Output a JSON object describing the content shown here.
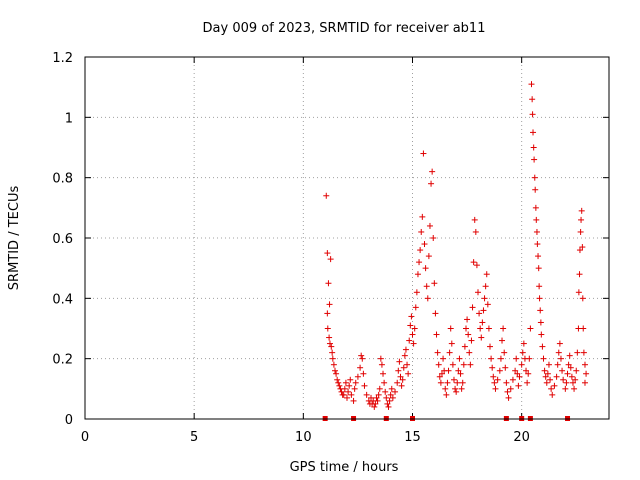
{
  "chart_data": {
    "type": "scatter",
    "title": "Day 009 of 2023, SRMTID for receiver ab11",
    "xlabel": "GPS time / hours",
    "ylabel": "SRMTID / TECUs",
    "xlim": [
      0,
      24
    ],
    "ylim": [
      0,
      1.2
    ],
    "x_ticks": [
      0,
      5,
      10,
      15,
      20
    ],
    "x_tick_labels": [
      "0",
      "5",
      "10",
      "15",
      "20"
    ],
    "y_ticks": [
      0,
      0.2,
      0.4,
      0.6,
      0.8,
      1.0,
      1.2
    ],
    "y_tick_labels": [
      "0",
      "0.2",
      "0.4",
      "0.6",
      "0.8",
      "1",
      "1.2"
    ],
    "grid": true,
    "marker": "+",
    "color": "#e00000",
    "zero_markers_x": [
      11.0,
      12.3,
      13.8,
      15.0,
      19.3,
      20.0,
      20.4,
      22.1
    ],
    "series": [
      {
        "name": "SRMTID",
        "points": [
          [
            11.05,
            0.74
          ],
          [
            11.1,
            0.55
          ],
          [
            11.15,
            0.45
          ],
          [
            11.2,
            0.38
          ],
          [
            11.25,
            0.53
          ],
          [
            11.1,
            0.35
          ],
          [
            11.12,
            0.3
          ],
          [
            11.18,
            0.27
          ],
          [
            11.22,
            0.25
          ],
          [
            11.28,
            0.24
          ],
          [
            11.32,
            0.22
          ],
          [
            11.35,
            0.2
          ],
          [
            11.4,
            0.18
          ],
          [
            11.45,
            0.16
          ],
          [
            11.5,
            0.15
          ],
          [
            11.55,
            0.13
          ],
          [
            11.6,
            0.12
          ],
          [
            11.65,
            0.11
          ],
          [
            11.7,
            0.1
          ],
          [
            11.75,
            0.09
          ],
          [
            11.8,
            0.08
          ],
          [
            11.85,
            0.08
          ],
          [
            11.9,
            0.1
          ],
          [
            11.95,
            0.12
          ],
          [
            12.0,
            0.07
          ],
          [
            12.05,
            0.09
          ],
          [
            12.1,
            0.11
          ],
          [
            12.15,
            0.13
          ],
          [
            12.2,
            0.08
          ],
          [
            12.3,
            0.06
          ],
          [
            12.35,
            0.1
          ],
          [
            12.4,
            0.12
          ],
          [
            12.5,
            0.14
          ],
          [
            12.6,
            0.17
          ],
          [
            12.65,
            0.21
          ],
          [
            12.7,
            0.2
          ],
          [
            12.75,
            0.15
          ],
          [
            12.8,
            0.11
          ],
          [
            12.9,
            0.08
          ],
          [
            13.0,
            0.06
          ],
          [
            13.05,
            0.05
          ],
          [
            13.1,
            0.07
          ],
          [
            13.15,
            0.05
          ],
          [
            13.2,
            0.06
          ],
          [
            13.25,
            0.04
          ],
          [
            13.3,
            0.05
          ],
          [
            13.35,
            0.07
          ],
          [
            13.4,
            0.06
          ],
          [
            13.45,
            0.08
          ],
          [
            13.5,
            0.1
          ],
          [
            13.55,
            0.2
          ],
          [
            13.6,
            0.18
          ],
          [
            13.65,
            0.15
          ],
          [
            13.7,
            0.12
          ],
          [
            13.75,
            0.09
          ],
          [
            13.8,
            0.07
          ],
          [
            13.85,
            0.05
          ],
          [
            13.9,
            0.04
          ],
          [
            13.95,
            0.06
          ],
          [
            14.0,
            0.08
          ],
          [
            14.05,
            0.1
          ],
          [
            14.1,
            0.07
          ],
          [
            14.2,
            0.09
          ],
          [
            14.3,
            0.12
          ],
          [
            14.35,
            0.16
          ],
          [
            14.4,
            0.19
          ],
          [
            14.45,
            0.14
          ],
          [
            14.5,
            0.11
          ],
          [
            14.55,
            0.13
          ],
          [
            14.6,
            0.17
          ],
          [
            14.65,
            0.21
          ],
          [
            14.7,
            0.23
          ],
          [
            14.75,
            0.18
          ],
          [
            14.8,
            0.15
          ],
          [
            14.85,
            0.26
          ],
          [
            14.9,
            0.31
          ],
          [
            14.95,
            0.34
          ],
          [
            15.0,
            0.28
          ],
          [
            15.05,
            0.25
          ],
          [
            15.1,
            0.3
          ],
          [
            15.15,
            0.37
          ],
          [
            15.2,
            0.42
          ],
          [
            15.25,
            0.48
          ],
          [
            15.3,
            0.52
          ],
          [
            15.35,
            0.56
          ],
          [
            15.4,
            0.62
          ],
          [
            15.45,
            0.67
          ],
          [
            15.5,
            0.88
          ],
          [
            15.55,
            0.58
          ],
          [
            15.6,
            0.5
          ],
          [
            15.65,
            0.44
          ],
          [
            15.7,
            0.4
          ],
          [
            15.75,
            0.54
          ],
          [
            15.8,
            0.64
          ],
          [
            15.85,
            0.78
          ],
          [
            15.9,
            0.82
          ],
          [
            15.95,
            0.6
          ],
          [
            16.0,
            0.45
          ],
          [
            16.05,
            0.35
          ],
          [
            16.1,
            0.28
          ],
          [
            16.15,
            0.22
          ],
          [
            16.2,
            0.18
          ],
          [
            16.25,
            0.14
          ],
          [
            16.3,
            0.12
          ],
          [
            16.35,
            0.15
          ],
          [
            16.4,
            0.2
          ],
          [
            16.45,
            0.16
          ],
          [
            16.5,
            0.1
          ],
          [
            16.55,
            0.08
          ],
          [
            16.6,
            0.12
          ],
          [
            16.65,
            0.16
          ],
          [
            16.7,
            0.22
          ],
          [
            16.75,
            0.3
          ],
          [
            16.8,
            0.25
          ],
          [
            16.85,
            0.18
          ],
          [
            16.9,
            0.13
          ],
          [
            16.95,
            0.1
          ],
          [
            17.0,
            0.09
          ],
          [
            17.05,
            0.12
          ],
          [
            17.1,
            0.16
          ],
          [
            17.15,
            0.2
          ],
          [
            17.2,
            0.15
          ],
          [
            17.25,
            0.1
          ],
          [
            17.3,
            0.12
          ],
          [
            17.35,
            0.18
          ],
          [
            17.4,
            0.24
          ],
          [
            17.45,
            0.3
          ],
          [
            17.5,
            0.33
          ],
          [
            17.55,
            0.28
          ],
          [
            17.6,
            0.22
          ],
          [
            17.65,
            0.18
          ],
          [
            17.7,
            0.26
          ],
          [
            17.75,
            0.37
          ],
          [
            17.8,
            0.52
          ],
          [
            17.85,
            0.66
          ],
          [
            17.9,
            0.62
          ],
          [
            17.95,
            0.51
          ],
          [
            18.0,
            0.42
          ],
          [
            18.05,
            0.35
          ],
          [
            18.1,
            0.3
          ],
          [
            18.15,
            0.27
          ],
          [
            18.2,
            0.32
          ],
          [
            18.25,
            0.36
          ],
          [
            18.3,
            0.4
          ],
          [
            18.35,
            0.44
          ],
          [
            18.4,
            0.48
          ],
          [
            18.45,
            0.38
          ],
          [
            18.5,
            0.3
          ],
          [
            18.55,
            0.24
          ],
          [
            18.6,
            0.2
          ],
          [
            18.65,
            0.17
          ],
          [
            18.7,
            0.14
          ],
          [
            18.75,
            0.12
          ],
          [
            18.8,
            0.1
          ],
          [
            18.9,
            0.13
          ],
          [
            19.0,
            0.16
          ],
          [
            19.05,
            0.2
          ],
          [
            19.1,
            0.26
          ],
          [
            19.15,
            0.3
          ],
          [
            19.2,
            0.22
          ],
          [
            19.25,
            0.17
          ],
          [
            19.3,
            0.12
          ],
          [
            19.35,
            0.09
          ],
          [
            19.4,
            0.07
          ],
          [
            19.5,
            0.1
          ],
          [
            19.6,
            0.13
          ],
          [
            19.7,
            0.16
          ],
          [
            19.75,
            0.2
          ],
          [
            19.8,
            0.15
          ],
          [
            19.85,
            0.11
          ],
          [
            19.9,
            0.14
          ],
          [
            20.0,
            0.18
          ],
          [
            20.05,
            0.22
          ],
          [
            20.1,
            0.25
          ],
          [
            20.15,
            0.2
          ],
          [
            20.2,
            0.16
          ],
          [
            20.25,
            0.12
          ],
          [
            20.3,
            0.15
          ],
          [
            20.35,
            0.2
          ],
          [
            20.4,
            0.3
          ],
          [
            20.45,
            1.11
          ],
          [
            20.48,
            1.06
          ],
          [
            20.5,
            1.01
          ],
          [
            20.52,
            0.95
          ],
          [
            20.55,
            0.9
          ],
          [
            20.57,
            0.86
          ],
          [
            20.6,
            0.8
          ],
          [
            20.62,
            0.76
          ],
          [
            20.65,
            0.7
          ],
          [
            20.67,
            0.66
          ],
          [
            20.7,
            0.62
          ],
          [
            20.72,
            0.58
          ],
          [
            20.75,
            0.54
          ],
          [
            20.78,
            0.5
          ],
          [
            20.8,
            0.44
          ],
          [
            20.82,
            0.4
          ],
          [
            20.85,
            0.36
          ],
          [
            20.88,
            0.32
          ],
          [
            20.9,
            0.28
          ],
          [
            20.95,
            0.24
          ],
          [
            21.0,
            0.2
          ],
          [
            21.05,
            0.16
          ],
          [
            21.1,
            0.14
          ],
          [
            21.15,
            0.12
          ],
          [
            21.2,
            0.15
          ],
          [
            21.25,
            0.18
          ],
          [
            21.3,
            0.13
          ],
          [
            21.35,
            0.1
          ],
          [
            21.4,
            0.08
          ],
          [
            21.5,
            0.11
          ],
          [
            21.6,
            0.14
          ],
          [
            21.65,
            0.18
          ],
          [
            21.7,
            0.22
          ],
          [
            21.75,
            0.25
          ],
          [
            21.8,
            0.2
          ],
          [
            21.85,
            0.16
          ],
          [
            21.9,
            0.13
          ],
          [
            22.0,
            0.1
          ],
          [
            22.05,
            0.12
          ],
          [
            22.1,
            0.15
          ],
          [
            22.15,
            0.18
          ],
          [
            22.2,
            0.21
          ],
          [
            22.25,
            0.17
          ],
          [
            22.3,
            0.14
          ],
          [
            22.35,
            0.12
          ],
          [
            22.4,
            0.1
          ],
          [
            22.45,
            0.13
          ],
          [
            22.5,
            0.16
          ],
          [
            22.55,
            0.22
          ],
          [
            22.6,
            0.3
          ],
          [
            22.62,
            0.42
          ],
          [
            22.65,
            0.48
          ],
          [
            22.67,
            0.56
          ],
          [
            22.7,
            0.62
          ],
          [
            22.72,
            0.66
          ],
          [
            22.75,
            0.69
          ],
          [
            22.78,
            0.57
          ],
          [
            22.8,
            0.4
          ],
          [
            22.82,
            0.3
          ],
          [
            22.85,
            0.22
          ],
          [
            22.9,
            0.18
          ],
          [
            22.95,
            0.15
          ],
          [
            22.9,
            0.12
          ]
        ]
      }
    ]
  }
}
